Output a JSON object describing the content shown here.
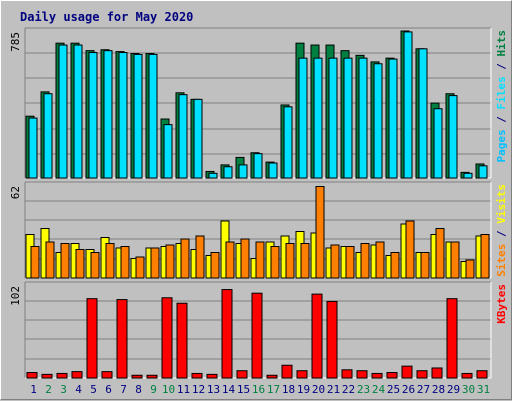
{
  "chart_data": {
    "type": "bar",
    "title": "Daily usage for May 2020",
    "colors": {
      "hits": "#008040",
      "files": "#00e0ff",
      "pages": "#00c0ff",
      "visits": "#ffff00",
      "sites": "#ff8000",
      "kbytes": "#ff0000",
      "weekend": "#008040",
      "weekday": "#000080",
      "grid": "#808080",
      "plot_bg": "#c0c0c0"
    },
    "days": [
      "1",
      "2",
      "3",
      "4",
      "5",
      "6",
      "7",
      "8",
      "9",
      "10",
      "11",
      "12",
      "13",
      "14",
      "15",
      "16",
      "17",
      "18",
      "19",
      "20",
      "21",
      "22",
      "23",
      "24",
      "25",
      "26",
      "27",
      "28",
      "29",
      "30",
      "31"
    ],
    "weekend_days": [
      2,
      3,
      9,
      10,
      16,
      17,
      23,
      24,
      30,
      31
    ],
    "panels": [
      {
        "id": "hits",
        "ymax_label": "785",
        "ymax": 785,
        "ylabel_parts": [
          {
            "text": "Pages",
            "color": "#00c0ff"
          },
          {
            "text": " / ",
            "color": "#000080"
          },
          {
            "text": "Files",
            "color": "#00e0ff"
          },
          {
            "text": " / ",
            "color": "#000080"
          },
          {
            "text": "Hits",
            "color": "#008040"
          }
        ],
        "series": [
          {
            "name": "Hits",
            "values": [
              330,
              460,
              720,
              720,
              680,
              685,
              675,
              665,
              665,
              315,
              455,
              420,
              35,
              70,
              110,
              135,
              85,
              390,
              720,
              710,
              710,
              680,
              655,
              620,
              640,
              785,
              690,
              400,
              450,
              30,
              75
            ]
          },
          {
            "name": "Files",
            "values": [
              320,
              450,
              710,
              710,
              670,
              680,
              670,
              660,
              660,
              285,
              445,
              420,
              25,
              60,
              70,
              130,
              80,
              380,
              640,
              640,
              640,
              640,
              640,
              610,
              635,
              780,
              690,
              370,
              440,
              25,
              65
            ]
          },
          {
            "name": "Pages",
            "values": [
              0,
              0,
              0,
              0,
              0,
              0,
              0,
              0,
              0,
              0,
              0,
              0,
              0,
              0,
              0,
              0,
              0,
              0,
              0,
              0,
              0,
              0,
              0,
              0,
              0,
              0,
              0,
              0,
              0,
              0,
              0
            ]
          }
        ]
      },
      {
        "id": "visits",
        "ymax_label": "62",
        "ymax": 62,
        "ylabel_parts": [
          {
            "text": "Sites",
            "color": "#ff8000"
          },
          {
            "text": " / ",
            "color": "#000080"
          },
          {
            "text": "Visits",
            "color": "#ffff00"
          }
        ],
        "series": [
          {
            "name": "Visits",
            "values": [
              29,
              33,
              17,
              23,
              19,
              27,
              20,
              13,
              20,
              21,
              23,
              19,
              15,
              38,
              23,
              13,
              24,
              28,
              31,
              30,
              20,
              21,
              17,
              22,
              15,
              36,
              17,
              29,
              24,
              11,
              28
            ]
          },
          {
            "name": "Sites",
            "values": [
              21,
              24,
              23,
              19,
              17,
              23,
              21,
              14,
              20,
              22,
              26,
              28,
              17,
              24,
              26,
              24,
              21,
              23,
              23,
              61,
              22,
              21,
              23,
              24,
              17,
              38,
              17,
              33,
              24,
              12,
              29
            ]
          }
        ]
      },
      {
        "id": "kbytes",
        "ymax_label": "102",
        "ymax": 102,
        "ylabel_parts": [
          {
            "text": "KBytes",
            "color": "#ff0000"
          }
        ],
        "series": [
          {
            "name": "KBytes",
            "values": [
              6,
              4,
              5,
              7,
              87,
              7,
              86,
              3,
              3,
              88,
              82,
              5,
              4,
              97,
              8,
              93,
              3,
              14,
              8,
              92,
              84,
              9,
              8,
              5,
              6,
              13,
              8,
              11,
              87,
              5,
              8
            ]
          }
        ]
      }
    ]
  }
}
